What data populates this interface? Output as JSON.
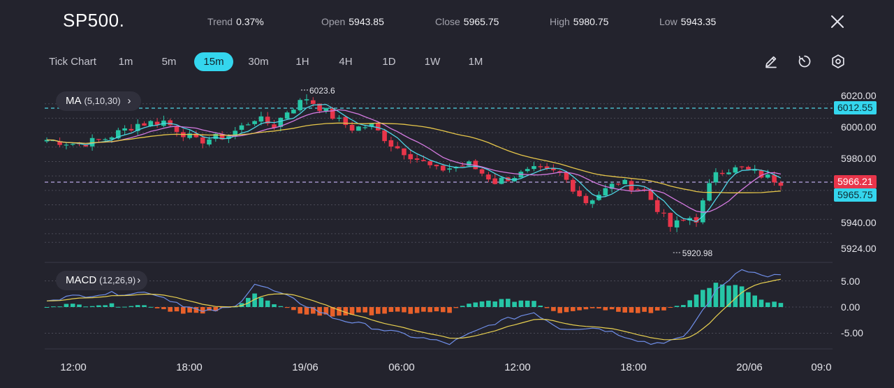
{
  "header": {
    "symbol": "SP500.",
    "stats": [
      {
        "label": "Trend",
        "value": "0.37%"
      },
      {
        "label": "Open",
        "value": "5943.85"
      },
      {
        "label": "Close",
        "value": "5965.75"
      },
      {
        "label": "High",
        "value": "5980.75"
      },
      {
        "label": "Low",
        "value": "5943.35"
      }
    ]
  },
  "toolbar": {
    "tick_chart": "Tick Chart",
    "timeframes": [
      "1m",
      "5m",
      "15m",
      "30m",
      "1H",
      "4H",
      "1D",
      "1W",
      "1M"
    ],
    "active_timeframe": "15m",
    "tools": [
      "pencil-icon",
      "timer-icon",
      "settings-icon"
    ]
  },
  "indicators": {
    "ma": {
      "label": "MA",
      "params": "(5,10,30)",
      "arrow": "›"
    },
    "macd": {
      "label": "MACD",
      "params": "(12,26,9)",
      "arrow": "›"
    }
  },
  "price_tags": {
    "ref_line": "6012.55",
    "bid": "5966.21",
    "last": "5965.75",
    "colors": {
      "ref": "#34d6ee",
      "bid": "#e8354a",
      "last": "#34d6ee"
    }
  },
  "chart_data": {
    "type": "candlestick",
    "price_axis": {
      "ticks": [
        "6020.00",
        "6000.00",
        "5980.00",
        "5940.00",
        "5924.00"
      ],
      "range": [
        5914,
        6030
      ]
    },
    "macd_axis": {
      "ticks": [
        "5.00",
        "0.00",
        "-5.00"
      ],
      "range": [
        -9,
        8.5
      ]
    },
    "time_axis": {
      "labels": [
        "12:00",
        "18:00",
        "19/06",
        "06:00",
        "12:00",
        "18:00",
        "20/06",
        "09:0"
      ]
    },
    "annotations": {
      "high": "6023.6",
      "low": "5920.98"
    },
    "colors": {
      "up": "#26c6a6",
      "down": "#e8354a",
      "ma5": "#4fd6e6",
      "ma10": "#d47ae0",
      "ma30": "#e6c64a",
      "macd_line": "#6f8ee8",
      "signal_line": "#e8d050",
      "hist_pos": "#26c6a6",
      "hist_neg": "#e8602a"
    },
    "close_path": [
      [
        0,
        5995
      ],
      [
        5,
        5992
      ],
      [
        9,
        5996
      ],
      [
        14,
        6006
      ],
      [
        18,
        6008
      ],
      [
        23,
        5994
      ],
      [
        28,
        5998
      ],
      [
        32,
        6010
      ],
      [
        35,
        6005
      ],
      [
        37,
        6015
      ],
      [
        40,
        6024
      ],
      [
        45,
        6008
      ],
      [
        47,
        6003
      ],
      [
        50,
        6005
      ],
      [
        53,
        5992
      ],
      [
        60,
        5974
      ],
      [
        65,
        5978
      ],
      [
        69,
        5966
      ],
      [
        75,
        5974
      ],
      [
        79,
        5972
      ],
      [
        83,
        5952
      ],
      [
        88,
        5966
      ],
      [
        92,
        5960
      ],
      [
        96,
        5935
      ],
      [
        99,
        5941
      ],
      [
        100,
        5940
      ],
      [
        103,
        5974
      ],
      [
        107,
        5975
      ],
      [
        111,
        5969
      ],
      [
        113,
        5966
      ]
    ],
    "macd_path": [
      [
        0,
        1.5
      ],
      [
        8,
        2.5
      ],
      [
        16,
        2.8
      ],
      [
        24,
        -1
      ],
      [
        29,
        0
      ],
      [
        32,
        4.5
      ],
      [
        36,
        2.5
      ],
      [
        44,
        -2
      ],
      [
        54,
        -5
      ],
      [
        62,
        -7
      ],
      [
        69,
        -3
      ],
      [
        75,
        -1
      ],
      [
        79,
        -4
      ],
      [
        85,
        -4
      ],
      [
        93,
        -7
      ],
      [
        98,
        -6
      ],
      [
        103,
        3
      ],
      [
        107,
        7.5
      ],
      [
        110,
        6
      ],
      [
        113,
        6
      ]
    ]
  }
}
